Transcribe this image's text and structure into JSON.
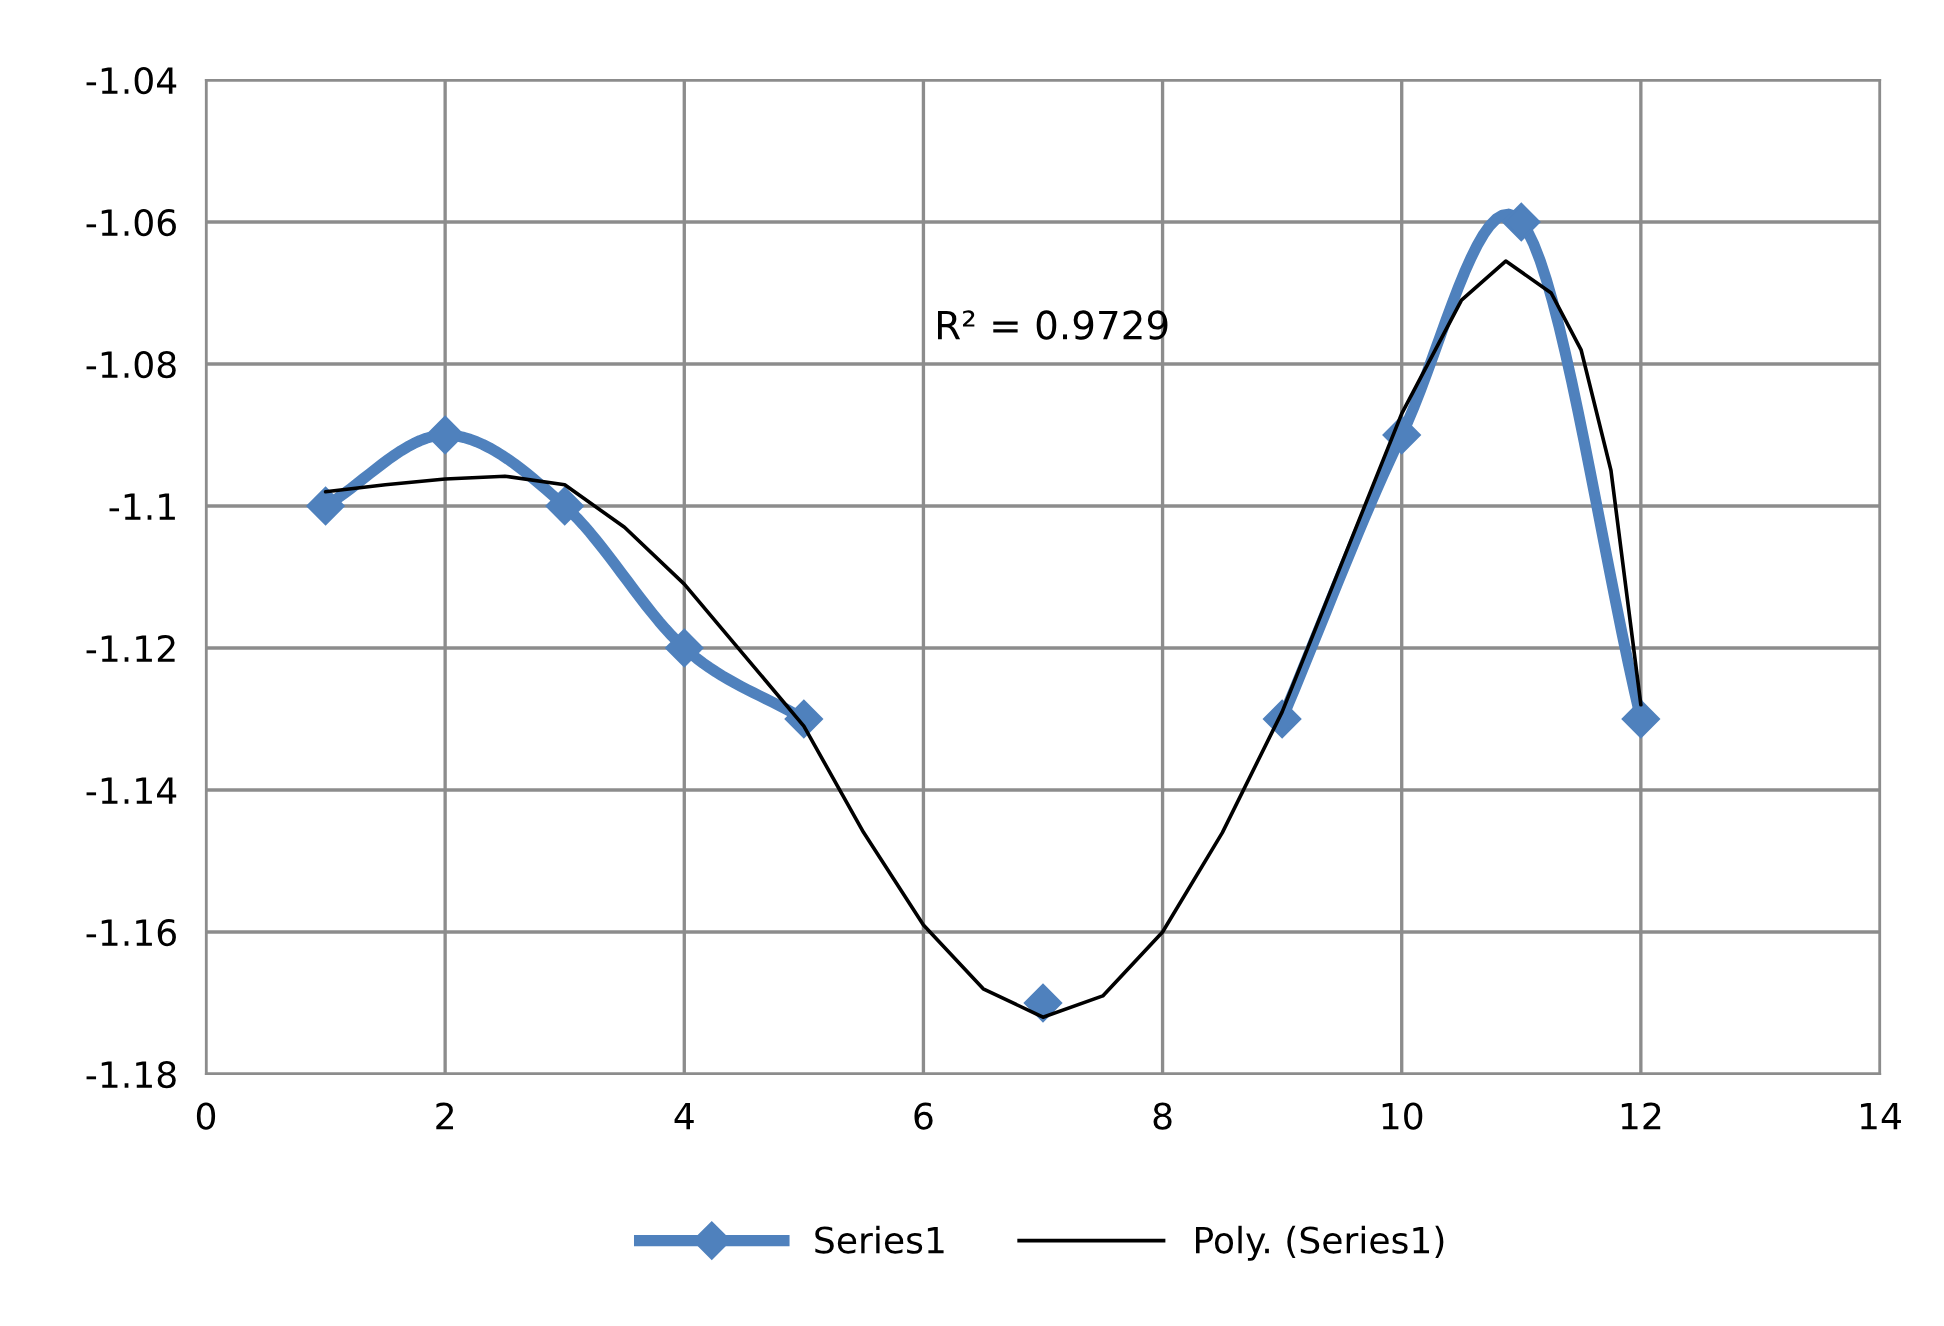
{
  "chart_data": {
    "type": "line",
    "xlim": [
      0,
      14
    ],
    "xticks": [
      0,
      2,
      4,
      6,
      8,
      10,
      12,
      14
    ],
    "ylim": [
      -1.18,
      -1.04
    ],
    "yticks": [
      -1.18,
      -1.16,
      -1.14,
      -1.12,
      -1.1,
      -1.08,
      -1.06,
      -1.04
    ],
    "grid": true,
    "legend": "bottom",
    "annotations": [
      "R² = 0.9729"
    ],
    "series": [
      {
        "name": "Series1",
        "color": "#4f81bd",
        "marker": "diamond",
        "line_style": "solid",
        "x": [
          1,
          2,
          3,
          4,
          5,
          6,
          7,
          8,
          9,
          10,
          11,
          12
        ],
        "values": [
          -1.1,
          -1.09,
          -1.1,
          -1.12,
          -1.13,
          null,
          -1.17,
          null,
          -1.13,
          -1.09,
          -1.06,
          -1.13
        ]
      },
      {
        "name": "Poly. (Series1)",
        "color": "#000000",
        "marker": "none",
        "line_style": "solid",
        "x": [
          1,
          1.5,
          2,
          2.5,
          3,
          3.5,
          4,
          4.5,
          5,
          5.5,
          6,
          6.5,
          7,
          7.5,
          8,
          8.5,
          9,
          9.5,
          10,
          10.5,
          10.87,
          11.25,
          11.5,
          11.75,
          12
        ],
        "values": [
          -1.098,
          -1.097,
          -1.0962,
          -1.0958,
          -1.097,
          -1.103,
          -1.111,
          -1.121,
          -1.131,
          -1.146,
          -1.159,
          -1.168,
          -1.172,
          -1.169,
          -1.16,
          -1.146,
          -1.129,
          -1.108,
          -1.087,
          -1.071,
          -1.0655,
          -1.07,
          -1.078,
          -1.095,
          -1.128
        ]
      }
    ]
  }
}
